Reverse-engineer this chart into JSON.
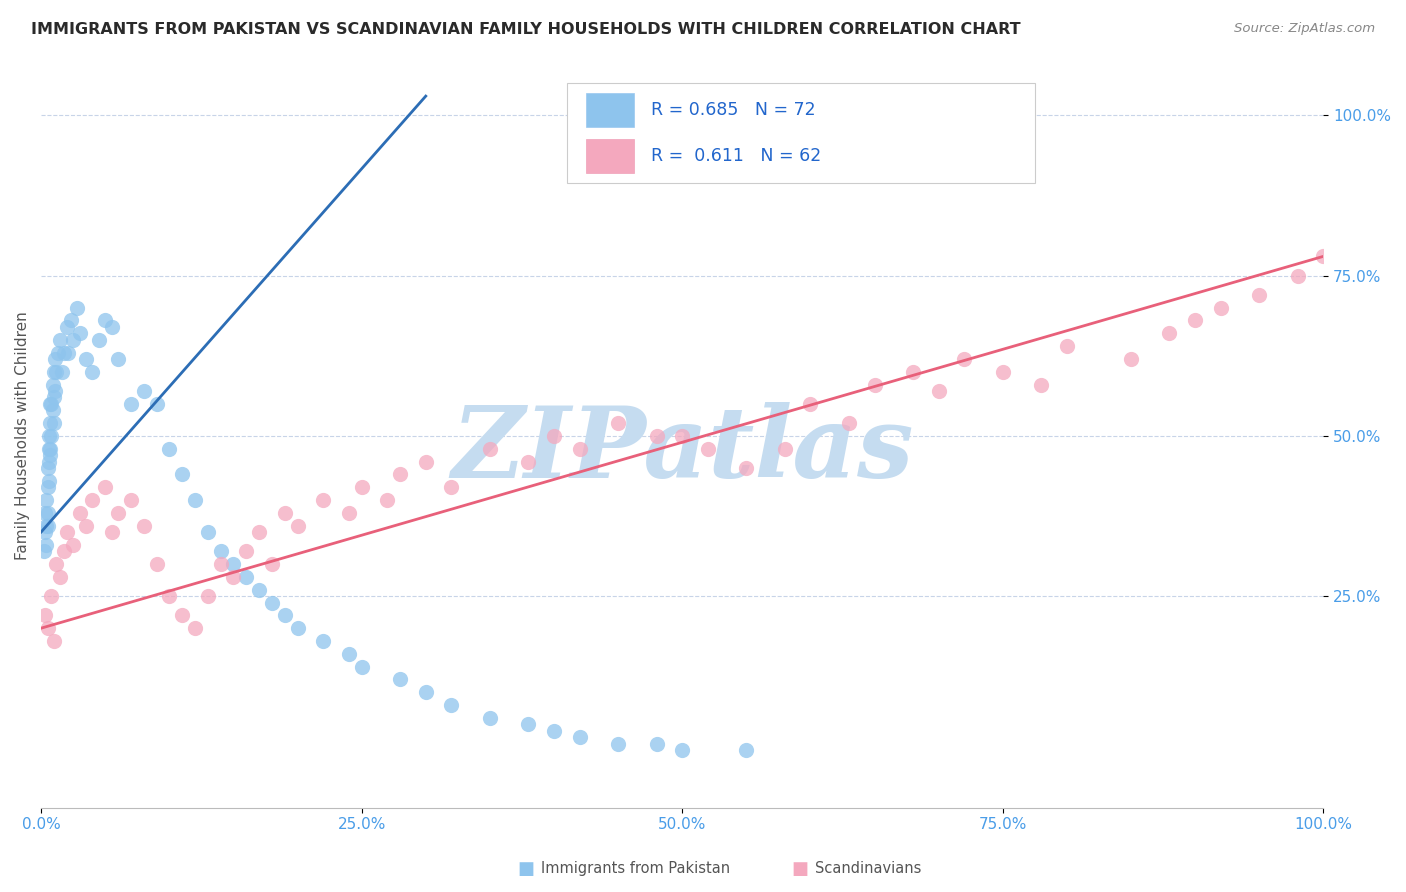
{
  "title": "IMMIGRANTS FROM PAKISTAN VS SCANDINAVIAN FAMILY HOUSEHOLDS WITH CHILDREN CORRELATION CHART",
  "source": "Source: ZipAtlas.com",
  "ylabel": "Family Households with Children",
  "xmin": 0.0,
  "xmax": 100.0,
  "ymin": -8.0,
  "ymax": 108.0,
  "xtick_labels": [
    "0.0%",
    "25.0%",
    "50.0%",
    "75.0%",
    "100.0%"
  ],
  "xtick_values": [
    0,
    25,
    50,
    75,
    100
  ],
  "ytick_labels": [
    "25.0%",
    "50.0%",
    "75.0%",
    "100.0%"
  ],
  "ytick_values": [
    25,
    50,
    75,
    100
  ],
  "legend_r_blue": "0.685",
  "legend_n_blue": "72",
  "legend_r_pink": "0.611",
  "legend_n_pink": "62",
  "legend_label_blue": "Immigrants from Pakistan",
  "legend_label_pink": "Scandinavians",
  "dot_color_blue": "#8ec4ed",
  "dot_color_pink": "#f4a8be",
  "line_color_blue": "#2c6db5",
  "line_color_pink": "#e8607a",
  "watermark": "ZIPatlas",
  "watermark_color": "#c5dcf0",
  "background_color": "#ffffff",
  "grid_color": "#c8d4e8",
  "title_color": "#2a2a2a",
  "axis_label_color": "#555555",
  "tick_label_color": "#4a9de8",
  "legend_r_color": "#2266cc",
  "source_color": "#888888",
  "blue_scatter_x": [
    0.2,
    0.3,
    0.3,
    0.4,
    0.4,
    0.4,
    0.5,
    0.5,
    0.5,
    0.5,
    0.6,
    0.6,
    0.6,
    0.6,
    0.7,
    0.7,
    0.7,
    0.7,
    0.8,
    0.8,
    0.9,
    0.9,
    1.0,
    1.0,
    1.0,
    1.1,
    1.1,
    1.2,
    1.3,
    1.5,
    1.6,
    1.8,
    2.0,
    2.1,
    2.3,
    2.5,
    2.8,
    3.0,
    3.5,
    4.0,
    4.5,
    5.0,
    5.5,
    6.0,
    7.0,
    8.0,
    9.0,
    10.0,
    11.0,
    12.0,
    13.0,
    14.0,
    15.0,
    16.0,
    17.0,
    18.0,
    19.0,
    20.0,
    22.0,
    24.0,
    25.0,
    28.0,
    30.0,
    32.0,
    35.0,
    38.0,
    40.0,
    42.0,
    45.0,
    48.0,
    50.0,
    55.0
  ],
  "blue_scatter_y": [
    32,
    35,
    38,
    40,
    33,
    36,
    42,
    45,
    38,
    36,
    50,
    48,
    43,
    46,
    55,
    52,
    48,
    47,
    55,
    50,
    58,
    54,
    60,
    56,
    52,
    62,
    57,
    60,
    63,
    65,
    60,
    63,
    67,
    63,
    68,
    65,
    70,
    66,
    62,
    60,
    65,
    68,
    67,
    62,
    55,
    57,
    55,
    48,
    44,
    40,
    35,
    32,
    30,
    28,
    26,
    24,
    22,
    20,
    18,
    16,
    14,
    12,
    10,
    8,
    6,
    5,
    4,
    3,
    2,
    2,
    1,
    1
  ],
  "pink_scatter_x": [
    0.3,
    0.5,
    0.8,
    1.0,
    1.2,
    1.5,
    1.8,
    2.0,
    2.5,
    3.0,
    3.5,
    4.0,
    5.0,
    5.5,
    6.0,
    7.0,
    8.0,
    9.0,
    10.0,
    11.0,
    12.0,
    13.0,
    14.0,
    15.0,
    16.0,
    17.0,
    18.0,
    19.0,
    20.0,
    22.0,
    24.0,
    25.0,
    27.0,
    28.0,
    30.0,
    32.0,
    35.0,
    38.0,
    40.0,
    42.0,
    45.0,
    48.0,
    50.0,
    52.0,
    55.0,
    58.0,
    60.0,
    63.0,
    65.0,
    68.0,
    70.0,
    72.0,
    75.0,
    78.0,
    80.0,
    85.0,
    88.0,
    90.0,
    92.0,
    95.0,
    98.0,
    100.0
  ],
  "pink_scatter_y": [
    22,
    20,
    25,
    18,
    30,
    28,
    32,
    35,
    33,
    38,
    36,
    40,
    42,
    35,
    38,
    40,
    36,
    30,
    25,
    22,
    20,
    25,
    30,
    28,
    32,
    35,
    30,
    38,
    36,
    40,
    38,
    42,
    40,
    44,
    46,
    42,
    48,
    46,
    50,
    48,
    52,
    50,
    50,
    48,
    45,
    48,
    55,
    52,
    58,
    60,
    57,
    62,
    60,
    58,
    64,
    62,
    66,
    68,
    70,
    72,
    75,
    78
  ],
  "blue_line_x0": 0.0,
  "blue_line_x1": 30.0,
  "blue_line_y0": 35.0,
  "blue_line_y1": 103.0,
  "pink_line_x0": 0.0,
  "pink_line_x1": 100.0,
  "pink_line_y0": 20.0,
  "pink_line_y1": 78.0
}
